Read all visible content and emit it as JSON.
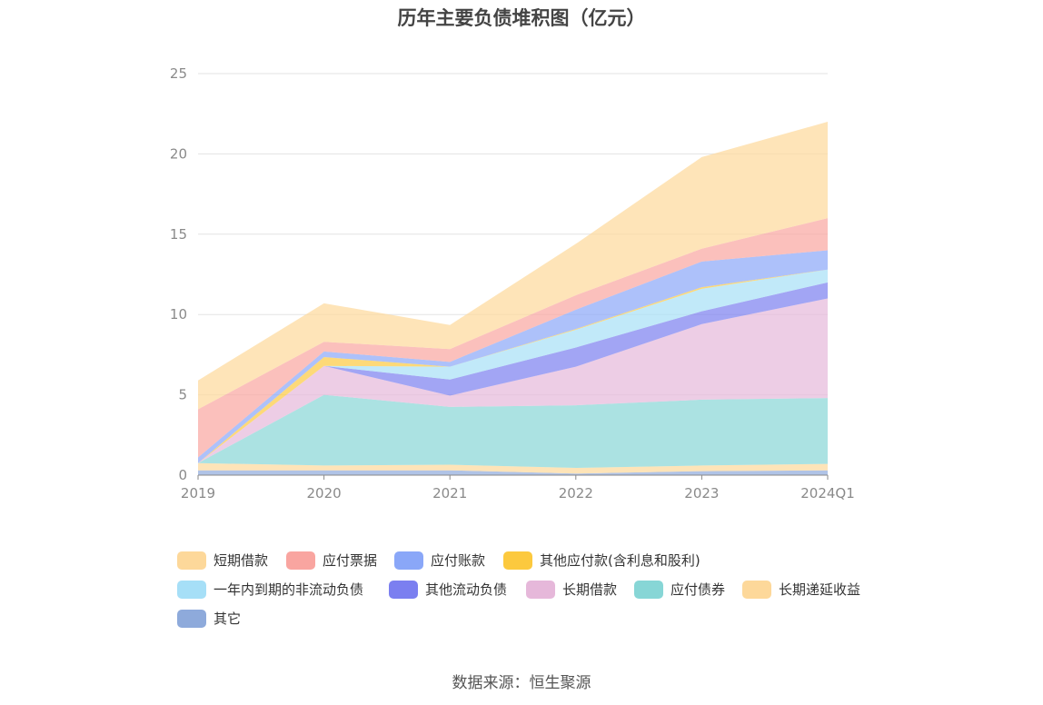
{
  "chart_data": {
    "type": "area",
    "stacked": true,
    "title": "历年主要负债堆积图（亿元）",
    "source": "数据来源：恒生聚源",
    "categories": [
      "2019",
      "2020",
      "2021",
      "2022",
      "2023",
      "2024Q1"
    ],
    "ylim": [
      0,
      25
    ],
    "yticks": [
      0,
      5,
      10,
      15,
      20,
      25
    ],
    "grid": true,
    "legend_position": "bottom",
    "series": [
      {
        "name": "其它",
        "color": "#8eaadb",
        "values": [
          0.3,
          0.3,
          0.3,
          0.1,
          0.25,
          0.3
        ]
      },
      {
        "name": "长期递延收益",
        "color": "#fdd89a",
        "values": [
          0.45,
          0.3,
          0.35,
          0.35,
          0.35,
          0.4
        ]
      },
      {
        "name": "应付债券",
        "color": "#87d6d6",
        "values": [
          0.0,
          4.4,
          3.6,
          3.9,
          4.1,
          4.1
        ]
      },
      {
        "name": "长期借款",
        "color": "#e6b8da",
        "values": [
          0.0,
          1.8,
          0.7,
          2.4,
          4.7,
          6.2
        ]
      },
      {
        "name": "其他流动负债",
        "color": "#7b7ff0",
        "values": [
          0.0,
          0.0,
          1.0,
          1.2,
          0.8,
          1.0
        ]
      },
      {
        "name": "一年内到期的非流动负债",
        "color": "#a6dff7",
        "values": [
          0.0,
          0.0,
          0.8,
          1.1,
          1.4,
          0.8
        ]
      },
      {
        "name": "其他应付款(含利息和股利)",
        "color": "#fcc93e",
        "values": [
          0.0,
          0.55,
          0.0,
          0.05,
          0.1,
          0.0
        ]
      },
      {
        "name": "应付账款",
        "color": "#8aa7f8",
        "values": [
          0.35,
          0.35,
          0.3,
          1.2,
          1.6,
          1.2
        ]
      },
      {
        "name": "应付票据",
        "color": "#f9a5a0",
        "values": [
          3.0,
          0.6,
          0.8,
          0.9,
          0.8,
          2.0
        ]
      },
      {
        "name": "短期借款",
        "color": "#fdd89a",
        "values": [
          1.8,
          2.4,
          1.5,
          3.2,
          5.7,
          6.0
        ]
      }
    ],
    "legend_order": [
      "短期借款",
      "应付票据",
      "应付账款",
      "其他应付款(含利息和股利)",
      "一年内到期的非流动负债",
      "其他流动负债",
      "长期借款",
      "应付债券",
      "长期递延收益",
      "其它"
    ]
  }
}
